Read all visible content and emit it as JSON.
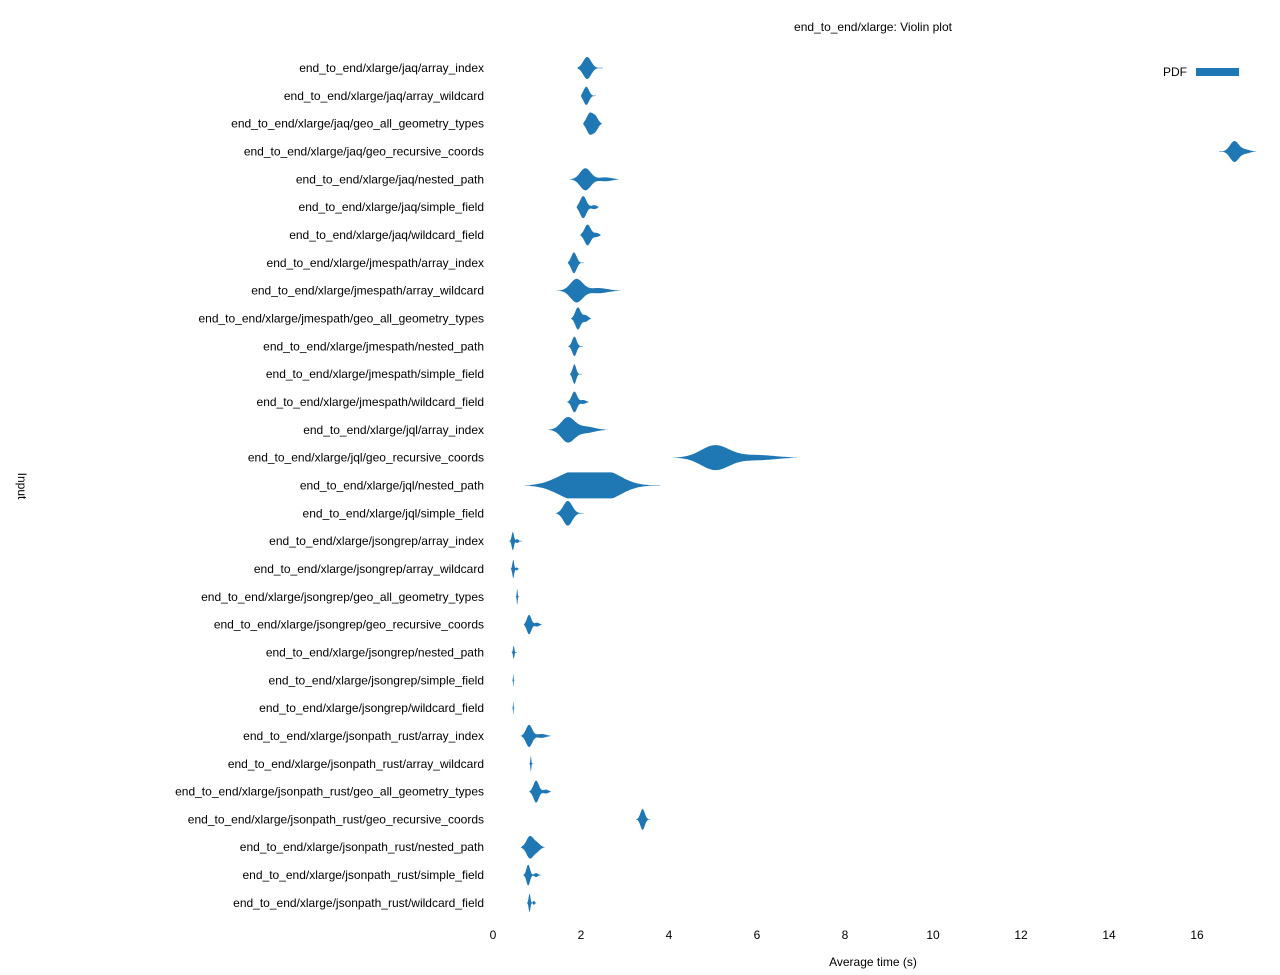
{
  "chart_data": {
    "type": "violin",
    "title": "end_to_end/xlarge: Violin plot",
    "xlabel": "Average time (s)",
    "ylabel": "Input",
    "xlim": [
      0,
      17.5
    ],
    "xticks": [
      "0",
      "2",
      "4",
      "6",
      "8",
      "10",
      "12",
      "14",
      "16"
    ],
    "grid": false,
    "legend": {
      "position": "top-right",
      "entries": [
        "PDF"
      ]
    },
    "color": "#1f77b4",
    "series": [
      {
        "name": "end_to_end/xlarge/jaq/array_index",
        "range": [
          1.91,
          2.5
        ],
        "peaks": [
          [
            2.14,
            0.85,
            0.09
          ]
        ]
      },
      {
        "name": "end_to_end/xlarge/jaq/array_wildcard",
        "range": [
          2.0,
          2.34
        ],
        "peaks": [
          [
            2.12,
            0.7,
            0.06
          ]
        ]
      },
      {
        "name": "end_to_end/xlarge/jaq/geo_all_geometry_types",
        "range": [
          2.05,
          2.48
        ],
        "peaks": [
          [
            2.2,
            0.8,
            0.07
          ],
          [
            2.33,
            0.5,
            0.06
          ]
        ]
      },
      {
        "name": "end_to_end/xlarge/jaq/geo_recursive_coords",
        "range": [
          16.5,
          17.34
        ],
        "peaks": [
          [
            16.85,
            0.8,
            0.1
          ],
          [
            17.1,
            0.15,
            0.1
          ]
        ]
      },
      {
        "name": "end_to_end/xlarge/jaq/nested_path",
        "range": [
          1.73,
          2.86
        ],
        "peaks": [
          [
            2.1,
            0.85,
            0.12
          ],
          [
            2.55,
            0.15,
            0.15
          ]
        ]
      },
      {
        "name": "end_to_end/xlarge/jaq/simple_field",
        "range": [
          1.9,
          2.4
        ],
        "peaks": [
          [
            2.05,
            0.85,
            0.07
          ],
          [
            2.3,
            0.15,
            0.06
          ]
        ]
      },
      {
        "name": "end_to_end/xlarge/jaq/wildcard_field",
        "range": [
          1.98,
          2.45
        ],
        "peaks": [
          [
            2.15,
            0.8,
            0.07
          ],
          [
            2.35,
            0.15,
            0.06
          ]
        ]
      },
      {
        "name": "end_to_end/xlarge/jmespath/array_index",
        "range": [
          1.7,
          2.07
        ],
        "peaks": [
          [
            1.84,
            0.8,
            0.06
          ]
        ]
      },
      {
        "name": "end_to_end/xlarge/jmespath/array_wildcard",
        "range": [
          1.45,
          2.9
        ],
        "peaks": [
          [
            1.9,
            0.9,
            0.14
          ],
          [
            2.4,
            0.2,
            0.2
          ]
        ]
      },
      {
        "name": "end_to_end/xlarge/jmespath/geo_all_geometry_types",
        "range": [
          1.77,
          2.23
        ],
        "peaks": [
          [
            1.93,
            0.85,
            0.06
          ],
          [
            2.1,
            0.25,
            0.06
          ]
        ]
      },
      {
        "name": "end_to_end/xlarge/jmespath/nested_path",
        "range": [
          1.7,
          2.05
        ],
        "peaks": [
          [
            1.85,
            0.75,
            0.05
          ]
        ]
      },
      {
        "name": "end_to_end/xlarge/jmespath/simple_field",
        "range": [
          1.75,
          2.02
        ],
        "peaks": [
          [
            1.85,
            0.75,
            0.04
          ]
        ]
      },
      {
        "name": "end_to_end/xlarge/jmespath/wildcard_field",
        "range": [
          1.68,
          2.18
        ],
        "peaks": [
          [
            1.85,
            0.8,
            0.06
          ],
          [
            2.05,
            0.15,
            0.06
          ]
        ]
      },
      {
        "name": "end_to_end/xlarge/jql/array_index",
        "range": [
          1.25,
          2.6
        ],
        "peaks": [
          [
            1.7,
            0.95,
            0.15
          ],
          [
            2.1,
            0.25,
            0.2
          ]
        ]
      },
      {
        "name": "end_to_end/xlarge/jql/geo_recursive_coords",
        "range": [
          4.1,
          6.9
        ],
        "peaks": [
          [
            5.05,
            0.95,
            0.32
          ],
          [
            6.0,
            0.2,
            0.4
          ]
        ]
      },
      {
        "name": "end_to_end/xlarge/jql/nested_path",
        "range": [
          0.73,
          3.8
        ],
        "peaks": [
          [
            1.85,
            1.0,
            0.4
          ],
          [
            2.55,
            1.0,
            0.38
          ]
        ]
      },
      {
        "name": "end_to_end/xlarge/jql/simple_field",
        "range": [
          1.43,
          2.07
        ],
        "peaks": [
          [
            1.7,
            0.95,
            0.1
          ]
        ]
      },
      {
        "name": "end_to_end/xlarge/jsongrep/array_index",
        "range": [
          0.36,
          0.66
        ],
        "peaks": [
          [
            0.45,
            0.7,
            0.025
          ],
          [
            0.55,
            0.15,
            0.03
          ]
        ]
      },
      {
        "name": "end_to_end/xlarge/jsongrep/array_wildcard",
        "range": [
          0.4,
          0.6
        ],
        "peaks": [
          [
            0.46,
            0.7,
            0.02
          ],
          [
            0.54,
            0.12,
            0.02
          ]
        ]
      },
      {
        "name": "end_to_end/xlarge/jsongrep/geo_all_geometry_types",
        "range": [
          0.52,
          0.6
        ],
        "peaks": [
          [
            0.55,
            0.6,
            0.01
          ]
        ]
      },
      {
        "name": "end_to_end/xlarge/jsongrep/geo_recursive_coords",
        "range": [
          0.7,
          1.11
        ],
        "peaks": [
          [
            0.82,
            0.75,
            0.05
          ],
          [
            1.0,
            0.15,
            0.05
          ]
        ]
      },
      {
        "name": "end_to_end/xlarge/jsongrep/nested_path",
        "range": [
          0.42,
          0.55
        ],
        "peaks": [
          [
            0.47,
            0.5,
            0.015
          ]
        ]
      },
      {
        "name": "end_to_end/xlarge/jsongrep/simple_field",
        "range": [
          0.44,
          0.49
        ],
        "peaks": [
          [
            0.46,
            0.5,
            0.006
          ]
        ]
      },
      {
        "name": "end_to_end/xlarge/jsongrep/wildcard_field",
        "range": [
          0.44,
          0.49
        ],
        "peaks": [
          [
            0.46,
            0.5,
            0.006
          ]
        ]
      },
      {
        "name": "end_to_end/xlarge/jsonpath_rust/array_index",
        "range": [
          0.63,
          1.32
        ],
        "peaks": [
          [
            0.82,
            0.85,
            0.07
          ],
          [
            1.1,
            0.15,
            0.1
          ]
        ]
      },
      {
        "name": "end_to_end/xlarge/jsonpath_rust/array_wildcard",
        "range": [
          0.82,
          0.91
        ],
        "peaks": [
          [
            0.86,
            0.6,
            0.01
          ]
        ]
      },
      {
        "name": "end_to_end/xlarge/jsonpath_rust/geo_all_geometry_types",
        "range": [
          0.82,
          1.32
        ],
        "peaks": [
          [
            0.98,
            0.85,
            0.06
          ],
          [
            1.2,
            0.15,
            0.06
          ]
        ]
      },
      {
        "name": "end_to_end/xlarge/jsonpath_rust/geo_recursive_coords",
        "range": [
          3.25,
          3.57
        ],
        "peaks": [
          [
            3.4,
            0.8,
            0.05
          ]
        ]
      },
      {
        "name": "end_to_end/xlarge/jsonpath_rust/nested_path",
        "range": [
          0.63,
          1.18
        ],
        "peaks": [
          [
            0.84,
            0.85,
            0.08
          ],
          [
            1.0,
            0.3,
            0.07
          ]
        ]
      },
      {
        "name": "end_to_end/xlarge/jsonpath_rust/simple_field",
        "range": [
          0.68,
          1.1
        ],
        "peaks": [
          [
            0.8,
            0.8,
            0.04
          ],
          [
            0.98,
            0.15,
            0.04
          ]
        ]
      },
      {
        "name": "end_to_end/xlarge/jsonpath_rust/wildcard_field",
        "range": [
          0.77,
          0.98
        ],
        "peaks": [
          [
            0.83,
            0.7,
            0.02
          ],
          [
            0.93,
            0.15,
            0.02
          ]
        ]
      }
    ]
  }
}
